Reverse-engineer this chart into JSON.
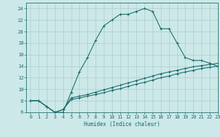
{
  "xlabel": "Humidex (Indice chaleur)",
  "xlim": [
    -0.5,
    23
  ],
  "ylim": [
    6,
    25
  ],
  "yticks": [
    6,
    8,
    10,
    12,
    14,
    16,
    18,
    20,
    22,
    24
  ],
  "xticks": [
    0,
    1,
    2,
    3,
    4,
    5,
    6,
    7,
    8,
    9,
    10,
    11,
    12,
    13,
    14,
    15,
    16,
    17,
    18,
    19,
    20,
    21,
    22,
    23
  ],
  "bg_color": "#cce8e8",
  "line_color": "#1a6b6b",
  "grid_color": "#aacccc",
  "lines": [
    {
      "x": [
        0,
        1,
        2,
        3,
        4,
        5,
        6,
        7,
        8,
        9,
        10,
        11,
        12,
        13,
        14,
        15,
        16,
        17,
        18,
        19,
        20,
        21,
        22,
        23
      ],
      "y": [
        8,
        8,
        7,
        6,
        6,
        9.5,
        13,
        15.5,
        18.5,
        21,
        22,
        23,
        23,
        23.5,
        24,
        23.5,
        20.5,
        20.5,
        18,
        15.5,
        15,
        15,
        14.5,
        14
      ]
    },
    {
      "x": [
        0,
        1,
        2,
        3,
        4,
        5,
        6,
        7,
        8,
        9,
        10,
        11,
        12,
        13,
        14,
        15,
        16,
        17,
        18,
        19,
        20,
        21,
        22,
        23
      ],
      "y": [
        8,
        8,
        7,
        6,
        6.5,
        8.5,
        8.8,
        9.1,
        9.5,
        9.9,
        10.3,
        10.7,
        11.1,
        11.5,
        11.9,
        12.3,
        12.7,
        13.0,
        13.3,
        13.6,
        13.9,
        14.1,
        14.3,
        14.5
      ]
    },
    {
      "x": [
        0,
        1,
        2,
        3,
        4,
        5,
        6,
        7,
        8,
        9,
        10,
        11,
        12,
        13,
        14,
        15,
        16,
        17,
        18,
        19,
        20,
        21,
        22,
        23
      ],
      "y": [
        8,
        8,
        7,
        6,
        6.5,
        8.2,
        8.5,
        8.8,
        9.1,
        9.4,
        9.8,
        10.1,
        10.5,
        10.9,
        11.2,
        11.6,
        12.0,
        12.3,
        12.7,
        13.0,
        13.3,
        13.6,
        13.8,
        14.0
      ]
    }
  ]
}
